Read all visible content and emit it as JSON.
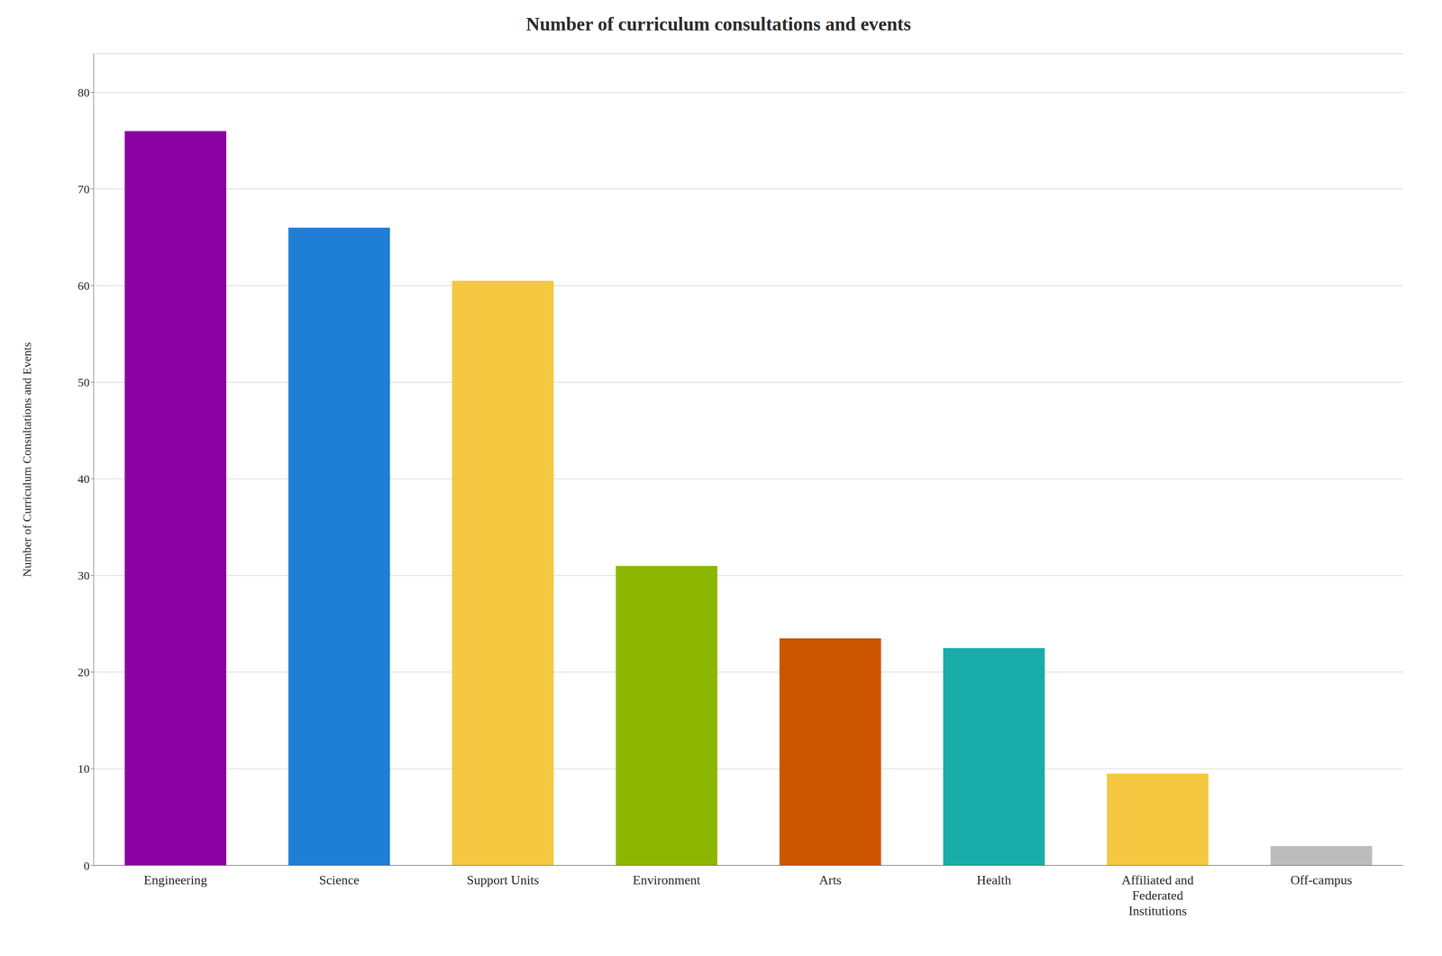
{
  "chart_data": {
    "type": "bar",
    "title": "Number of curriculum consultations and events",
    "ylabel": "Number of Curriculum Consultations and Events",
    "categories": [
      "Engineering",
      "Science",
      "Support Units",
      "Environment",
      "Arts",
      "Health",
      "Affiliated and\nFederated\nInstitutions",
      "Off-campus"
    ],
    "values": [
      76,
      66,
      60.5,
      31,
      23.5,
      22.5,
      9.5,
      2
    ],
    "colors": [
      "#8B00A0",
      "#1F7FD4",
      "#F5C842",
      "#8DB600",
      "#CC5500",
      "#1AACA8",
      "#F5C842",
      "#BCBCBC"
    ],
    "ylim": [
      0,
      84
    ],
    "yticks": [
      0,
      10,
      20,
      30,
      40,
      50,
      60,
      70,
      80
    ],
    "grid": true
  }
}
